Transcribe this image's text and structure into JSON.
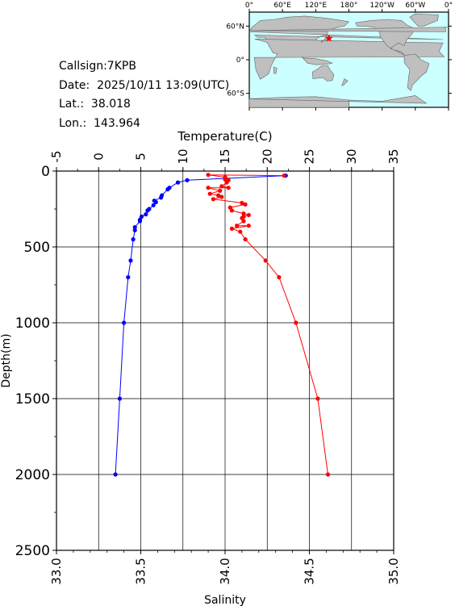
{
  "station": {
    "callsign": "Callsign:7KPB",
    "date": "Date:  2025/10/11 13:09(UTC)",
    "lat": "Lat.:  38.018",
    "lon": "Lon.:  143.964"
  },
  "map": {
    "lon_labels": [
      "0°",
      "60°E",
      "120°E",
      "180°",
      "120°W",
      "60°W",
      "0°"
    ],
    "lat_labels": [
      "60°N",
      "0°",
      "60°S"
    ],
    "ocean_color": "#ccffff",
    "land_color": "#bfbfbf",
    "marker": {
      "lat": 38.018,
      "lon": 143.964,
      "symbol": "star",
      "color": "#ff0000"
    }
  },
  "chart_data": {
    "type": "line",
    "top_axis": {
      "label": "Temperature(C)",
      "range": [
        -5,
        35
      ],
      "ticks": [
        "-5",
        "0",
        "5",
        "10",
        "15",
        "20",
        "25",
        "30",
        "35"
      ]
    },
    "bottom_axis": {
      "label": "Salinity",
      "range": [
        33.0,
        35.0
      ],
      "ticks": [
        "33.0",
        "33.5",
        "34.0",
        "34.5",
        "35.0"
      ]
    },
    "y_axis": {
      "label": "Depth(m)",
      "range": [
        0,
        2500
      ],
      "inverted": true,
      "ticks": [
        "0",
        "500",
        "1000",
        "1500",
        "2000",
        "2500"
      ]
    },
    "grid": true,
    "series": [
      {
        "quantity": "temperature",
        "axis": "top",
        "color": "#0000ff",
        "points": [
          [
            22.2,
            30
          ],
          [
            10.5,
            60
          ],
          [
            9.4,
            75
          ],
          [
            8.4,
            110
          ],
          [
            8.2,
            120
          ],
          [
            7.5,
            160
          ],
          [
            7.4,
            175
          ],
          [
            6.6,
            195
          ],
          [
            6.8,
            205
          ],
          [
            6.5,
            225
          ],
          [
            6.0,
            250
          ],
          [
            5.8,
            260
          ],
          [
            5.6,
            285
          ],
          [
            5.1,
            300
          ],
          [
            4.9,
            320
          ],
          [
            4.9,
            330
          ],
          [
            4.3,
            370
          ],
          [
            4.3,
            390
          ],
          [
            4.1,
            450
          ],
          [
            3.8,
            590
          ],
          [
            3.5,
            700
          ],
          [
            3.0,
            1000
          ],
          [
            2.5,
            1500
          ],
          [
            2.0,
            2000
          ]
        ]
      },
      {
        "quantity": "salinity",
        "axis": "bottom",
        "color": "#ff0000",
        "points": [
          [
            34.35,
            30
          ],
          [
            33.9,
            25
          ],
          [
            34.0,
            40
          ],
          [
            34.0,
            55
          ],
          [
            34.02,
            60
          ],
          [
            34.01,
            75
          ],
          [
            33.98,
            100
          ],
          [
            34.02,
            110
          ],
          [
            33.9,
            110
          ],
          [
            33.97,
            130
          ],
          [
            33.91,
            150
          ],
          [
            33.96,
            160
          ],
          [
            33.98,
            170
          ],
          [
            33.93,
            185
          ],
          [
            34.1,
            210
          ],
          [
            34.12,
            220
          ],
          [
            34.03,
            240
          ],
          [
            34.04,
            260
          ],
          [
            34.11,
            280
          ],
          [
            34.14,
            290
          ],
          [
            34.11,
            300
          ],
          [
            34.1,
            310
          ],
          [
            34.11,
            330
          ],
          [
            34.07,
            360
          ],
          [
            34.14,
            360
          ],
          [
            34.04,
            380
          ],
          [
            34.09,
            400
          ],
          [
            34.12,
            450
          ],
          [
            34.24,
            590
          ],
          [
            34.32,
            700
          ],
          [
            34.42,
            1000
          ],
          [
            34.55,
            1500
          ],
          [
            34.61,
            2000
          ]
        ]
      }
    ]
  }
}
